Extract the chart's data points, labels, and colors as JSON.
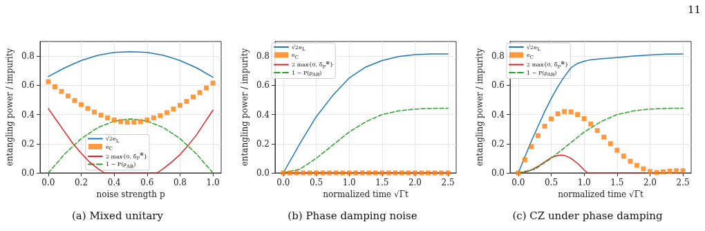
{
  "chart_data": [
    {
      "type": "line",
      "title": "(a) Mixed unitary",
      "xlabel": "noise strength p",
      "ylabel": "entangling power / impurity",
      "xlim": [
        -0.05,
        1.05
      ],
      "ylim": [
        0,
        0.9
      ],
      "xticks": [
        {
          "value": 0,
          "label": "0.0"
        },
        {
          "value": 0.2,
          "label": "0.2"
        },
        {
          "value": 0.4,
          "label": "0.4"
        },
        {
          "value": 0.6,
          "label": "0.6"
        },
        {
          "value": 0.8,
          "label": "0.8"
        },
        {
          "value": 1,
          "label": "1.0"
        }
      ],
      "yticks": [
        {
          "value": 0,
          "label": "0.0"
        },
        {
          "value": 0.2,
          "label": "0.2"
        },
        {
          "value": 0.4,
          "label": "0.4"
        },
        {
          "value": 0.6,
          "label": "0.6"
        },
        {
          "value": 0.8,
          "label": "0.8"
        }
      ],
      "grid": true,
      "legend": "bottom",
      "series": [
        {
          "name": "√2e$_{L}$",
          "type": "line",
          "color": "#1f77b4",
          "line_style": "solid",
          "x": [
            0,
            0.1,
            0.2,
            0.3,
            0.4,
            0.5,
            0.6,
            0.7,
            0.8,
            0.9,
            1
          ],
          "values": [
            0.66,
            0.72,
            0.77,
            0.805,
            0.825,
            0.83,
            0.825,
            0.805,
            0.77,
            0.72,
            0.655
          ]
        },
        {
          "name": "e$_{C}$",
          "type": "scatter",
          "color": "#ff7f0e",
          "marker": "square",
          "x": [
            0,
            0.04,
            0.08,
            0.12,
            0.16,
            0.2,
            0.24,
            0.28,
            0.32,
            0.36,
            0.4,
            0.44,
            0.48,
            0.52,
            0.56,
            0.6,
            0.64,
            0.68,
            0.72,
            0.76,
            0.8,
            0.84,
            0.88,
            0.92,
            0.96,
            1
          ],
          "values": [
            0.625,
            0.59,
            0.558,
            0.527,
            0.496,
            0.468,
            0.441,
            0.417,
            0.396,
            0.377,
            0.362,
            0.352,
            0.347,
            0.347,
            0.352,
            0.362,
            0.377,
            0.392,
            0.413,
            0.437,
            0.463,
            0.49,
            0.52,
            0.55,
            0.582,
            0.615
          ]
        },
        {
          "name": "2 max{0, δ̄$_{P}$$^{⊗}$}",
          "type": "line",
          "color": "#d62728",
          "line_style": "solid",
          "x": [
            0,
            0.05,
            0.1,
            0.15,
            0.2,
            0.25,
            0.3,
            0.34,
            0.66,
            0.7,
            0.75,
            0.8,
            0.85,
            0.9,
            0.95,
            1
          ],
          "values": [
            0.44,
            0.36,
            0.28,
            0.2,
            0.135,
            0.075,
            0.03,
            0,
            0,
            0.03,
            0.075,
            0.125,
            0.19,
            0.26,
            0.345,
            0.43
          ]
        },
        {
          "name": "1 − P(ρ$_{AB}$)",
          "type": "line",
          "color": "#2ca02c",
          "line_style": "dashed",
          "x": [
            0,
            0.1,
            0.2,
            0.3,
            0.4,
            0.5,
            0.6,
            0.7,
            0.8,
            0.9,
            1
          ],
          "values": [
            0,
            0.13,
            0.235,
            0.31,
            0.355,
            0.37,
            0.355,
            0.31,
            0.235,
            0.13,
            0
          ]
        }
      ]
    },
    {
      "type": "line",
      "title": "(b) Phase damping noise",
      "xlabel": "normalized time √Γt",
      "ylabel": "entangling power / impurity",
      "xlim": [
        -0.125,
        2.625
      ],
      "ylim": [
        0,
        0.9
      ],
      "xticks": [
        {
          "value": 0,
          "label": "0.0"
        },
        {
          "value": 0.5,
          "label": "0.5"
        },
        {
          "value": 1,
          "label": "1.0"
        },
        {
          "value": 1.5,
          "label": "1.5"
        },
        {
          "value": 2,
          "label": "2.0"
        },
        {
          "value": 2.5,
          "label": "2.5"
        }
      ],
      "yticks": [
        {
          "value": 0,
          "label": "0.0"
        },
        {
          "value": 0.2,
          "label": "0.2"
        },
        {
          "value": 0.4,
          "label": "0.4"
        },
        {
          "value": 0.6,
          "label": "0.6"
        },
        {
          "value": 0.8,
          "label": "0.8"
        }
      ],
      "grid": true,
      "legend": "top left",
      "series": [
        {
          "name": "√2e$_{L}$",
          "type": "line",
          "color": "#1f77b4",
          "line_style": "solid",
          "x": [
            0,
            0.25,
            0.5,
            0.75,
            1,
            1.25,
            1.5,
            1.75,
            2,
            2.25,
            2.5
          ],
          "values": [
            0,
            0.2,
            0.385,
            0.53,
            0.65,
            0.725,
            0.77,
            0.797,
            0.81,
            0.815,
            0.815
          ]
        },
        {
          "name": "e$_{C}$",
          "type": "scatter",
          "color": "#ff7f0e",
          "marker": "square",
          "x": [
            0,
            0.1,
            0.2,
            0.3,
            0.4,
            0.5,
            0.6,
            0.7,
            0.8,
            0.9,
            1,
            1.1,
            1.2,
            1.3,
            1.4,
            1.5,
            1.6,
            1.7,
            1.8,
            1.9,
            2,
            2.1,
            2.2,
            2.3,
            2.4,
            2.5
          ],
          "values": [
            0,
            0,
            0,
            0,
            0,
            0,
            0,
            0,
            0,
            0,
            0,
            0,
            0,
            0,
            0,
            0,
            0,
            0,
            0,
            0,
            0,
            0,
            0,
            0,
            0,
            0
          ]
        },
        {
          "name": "2 max{0, δ̄$_{P}$$^{⊗}$}",
          "type": "line",
          "color": "#d62728",
          "line_style": "solid",
          "x": [
            0,
            2.5
          ],
          "values": [
            0,
            0
          ]
        },
        {
          "name": "1 − P(ρ$_{AB}$)",
          "type": "line",
          "color": "#2ca02c",
          "line_style": "dashed",
          "x": [
            0,
            0.25,
            0.5,
            0.75,
            1,
            1.25,
            1.5,
            1.75,
            2,
            2.25,
            2.5
          ],
          "values": [
            0,
            0.025,
            0.1,
            0.19,
            0.28,
            0.35,
            0.4,
            0.425,
            0.437,
            0.442,
            0.443
          ]
        }
      ]
    },
    {
      "type": "line",
      "title": "(c) CZ under phase damping",
      "xlabel": "normalized time √Γt",
      "ylabel": "entangling power / impurity",
      "xlim": [
        -0.125,
        2.625
      ],
      "ylim": [
        0,
        0.9
      ],
      "xticks": [
        {
          "value": 0,
          "label": "0.0"
        },
        {
          "value": 0.5,
          "label": "0.5"
        },
        {
          "value": 1,
          "label": "1.0"
        },
        {
          "value": 1.5,
          "label": "1.5"
        },
        {
          "value": 2,
          "label": "2.0"
        },
        {
          "value": 2.5,
          "label": "2.5"
        }
      ],
      "yticks": [
        {
          "value": 0,
          "label": "0.0"
        },
        {
          "value": 0.2,
          "label": "0.2"
        },
        {
          "value": 0.4,
          "label": "0.4"
        },
        {
          "value": 0.6,
          "label": "0.6"
        },
        {
          "value": 0.8,
          "label": "0.8"
        }
      ],
      "grid": true,
      "legend": "top left",
      "annotations": [
        "11"
      ],
      "series": [
        {
          "name": "√2e$_{L}$",
          "type": "line",
          "color": "#1f77b4",
          "line_style": "solid",
          "x": [
            0,
            0.1,
            0.2,
            0.3,
            0.4,
            0.5,
            0.6,
            0.7,
            0.8,
            0.9,
            1,
            1.1,
            1.25,
            1.5,
            1.75,
            2,
            2.25,
            2.5
          ],
          "values": [
            0,
            0.11,
            0.22,
            0.32,
            0.42,
            0.51,
            0.59,
            0.66,
            0.72,
            0.75,
            0.765,
            0.775,
            0.782,
            0.79,
            0.8,
            0.808,
            0.813,
            0.815
          ]
        },
        {
          "name": "e$_{C}$",
          "type": "scatter",
          "color": "#ff7f0e",
          "marker": "square",
          "x": [
            0,
            0.1,
            0.2,
            0.3,
            0.4,
            0.5,
            0.6,
            0.7,
            0.8,
            0.9,
            1,
            1.1,
            1.2,
            1.3,
            1.4,
            1.5,
            1.6,
            1.7,
            1.8,
            1.9,
            2,
            2.1,
            2.2,
            2.3,
            2.4,
            2.5
          ],
          "values": [
            0,
            0.09,
            0.18,
            0.255,
            0.32,
            0.37,
            0.405,
            0.42,
            0.418,
            0.4,
            0.372,
            0.335,
            0.29,
            0.245,
            0.2,
            0.155,
            0.115,
            0.08,
            0.052,
            0.028,
            0.01,
            0.003,
            0.008,
            0.012,
            0.015,
            0.015
          ]
        },
        {
          "name": "2 max{0, δ̄$_{P}$$^{⊗}$}",
          "type": "line",
          "color": "#d62728",
          "line_style": "solid",
          "x": [
            0,
            0.1,
            0.2,
            0.3,
            0.4,
            0.5,
            0.6,
            0.65,
            0.7,
            0.8,
            0.9,
            1,
            1.05,
            2.5
          ],
          "values": [
            0,
            0.005,
            0.02,
            0.045,
            0.075,
            0.105,
            0.12,
            0.122,
            0.12,
            0.1,
            0.065,
            0.02,
            0,
            0
          ]
        },
        {
          "name": "1 − P(ρ$_{AB}$)",
          "type": "line",
          "color": "#2ca02c",
          "line_style": "dashed",
          "x": [
            0,
            0.25,
            0.5,
            0.75,
            1,
            1.25,
            1.5,
            1.75,
            2,
            2.25,
            2.5
          ],
          "values": [
            0,
            0.025,
            0.1,
            0.19,
            0.28,
            0.35,
            0.4,
            0.425,
            0.437,
            0.442,
            0.443
          ]
        }
      ]
    }
  ]
}
